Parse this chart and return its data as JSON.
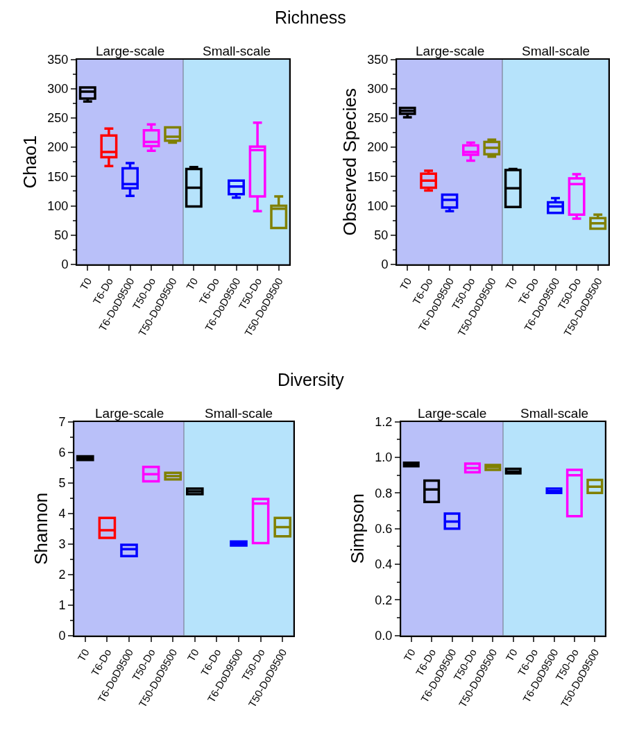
{
  "chart_data": [
    {
      "type": "box",
      "ylabel": "Chao1",
      "annotations": [
        "Richness"
      ],
      "categories": [
        "T0",
        "T6-Do",
        "T6-DoD9500",
        "T50-Do",
        "T50-DoD9500"
      ],
      "colors": [
        "#000000",
        "#ff0000",
        "#0000ff",
        "#ff00ff",
        "#808000"
      ],
      "boxes": [
        {
          "low": 278,
          "q1": 283,
          "median": 295,
          "q3": 302,
          "high": 302
        },
        {
          "low": 168,
          "q1": 183,
          "median": 192,
          "q3": 220,
          "high": 232
        },
        {
          "low": 117,
          "q1": 130,
          "median": 137,
          "q3": 164,
          "high": 173
        },
        {
          "low": 194,
          "q1": 202,
          "median": 209,
          "q3": 229,
          "high": 239
        },
        {
          "low": 208,
          "q1": 211,
          "median": 218,
          "q3": 234,
          "high": 234
        }
      ],
      "ylim": [
        0,
        350
      ],
      "yticks": [
        0,
        50,
        100,
        150,
        200,
        250,
        300,
        350
      ],
      "bands": [
        {
          "axis": "x",
          "from": "T0",
          "to": "T50-DoD9500",
          "label": "Large-scale",
          "color": "#b9c0f9"
        }
      ]
    },
    {
      "type": "box",
      "tick_labels": "x",
      "categories": [
        "T0",
        "T6-Do",
        "T6-DoD9500",
        "T50-Do",
        "T50-DoD9500"
      ],
      "colors": [
        "#000000",
        "#ff0000",
        "#0000ff",
        "#ff00ff",
        "#808000"
      ],
      "boxes": [
        {
          "low": 99,
          "q1": 99,
          "median": 131,
          "q3": 163,
          "high": 166
        },
        null,
        {
          "low": 114,
          "q1": 120,
          "median": 133,
          "q3": 143,
          "high": 143
        },
        {
          "low": 91,
          "q1": 116,
          "median": 195,
          "q3": 201,
          "high": 242
        },
        {
          "low": 62,
          "q1": 62,
          "median": 95,
          "q3": 100,
          "high": 116
        }
      ],
      "ylim": [
        0,
        350
      ],
      "bands": [
        {
          "axis": "x",
          "from": "T0",
          "to": "T50-DoD9500",
          "label": "Small-scale",
          "color": "#b6e3fb"
        }
      ]
    },
    {
      "type": "box",
      "ylabel": "Observed Species",
      "categories": [
        "T0",
        "T6-Do",
        "T6-DoD9500",
        "T50-Do",
        "T50-DoD9500"
      ],
      "colors": [
        "#000000",
        "#ff0000",
        "#0000ff",
        "#ff00ff",
        "#808000"
      ],
      "boxes": [
        {
          "low": 251,
          "q1": 257,
          "median": 262,
          "q3": 267,
          "high": 267
        },
        {
          "low": 126,
          "q1": 131,
          "median": 143,
          "q3": 155,
          "high": 160
        },
        {
          "low": 91,
          "q1": 97,
          "median": 110,
          "q3": 119,
          "high": 119
        },
        {
          "low": 177,
          "q1": 187,
          "median": 192,
          "q3": 203,
          "high": 208
        },
        {
          "low": 184,
          "q1": 188,
          "median": 199,
          "q3": 209,
          "high": 213
        }
      ],
      "ylim": [
        0,
        350
      ],
      "yticks": [
        0,
        50,
        100,
        150,
        200,
        250,
        300,
        350
      ],
      "bands": [
        {
          "axis": "x",
          "from": "T0",
          "to": "T50-DoD9500",
          "label": "Large-scale",
          "color": "#b9c0f9"
        }
      ]
    },
    {
      "type": "box",
      "tick_labels": "x",
      "categories": [
        "T0",
        "T6-Do",
        "T6-DoD9500",
        "T50-Do",
        "T50-DoD9500"
      ],
      "colors": [
        "#000000",
        "#ff0000",
        "#0000ff",
        "#ff00ff",
        "#808000"
      ],
      "boxes": [
        {
          "low": 98,
          "q1": 98,
          "median": 130,
          "q3": 161,
          "high": 163
        },
        null,
        {
          "low": 88,
          "q1": 88,
          "median": 99,
          "q3": 106,
          "high": 113
        },
        {
          "low": 78,
          "q1": 85,
          "median": 137,
          "q3": 147,
          "high": 154
        },
        {
          "low": 61,
          "q1": 61,
          "median": 70,
          "q3": 79,
          "high": 85
        }
      ],
      "ylim": [
        0,
        350
      ],
      "bands": [
        {
          "axis": "x",
          "from": "T0",
          "to": "T50-DoD9500",
          "label": "Small-scale",
          "color": "#b6e3fb"
        }
      ]
    },
    {
      "type": "box",
      "ylabel": "Shannon",
      "annotations": [
        "Diversity"
      ],
      "categories": [
        "T0",
        "T6-Do",
        "T6-DoD9500",
        "T50-Do",
        "T50-DoD9500"
      ],
      "colors": [
        "#000000",
        "#ff0000",
        "#0000ff",
        "#ff00ff",
        "#808000"
      ],
      "boxes": [
        {
          "low": 5.75,
          "q1": 5.75,
          "median": 5.82,
          "q3": 5.87,
          "high": 5.87
        },
        {
          "low": 3.2,
          "q1": 3.2,
          "median": 3.45,
          "q3": 3.85,
          "high": 3.85
        },
        {
          "low": 2.6,
          "q1": 2.6,
          "median": 2.83,
          "q3": 2.97,
          "high": 2.97
        },
        {
          "low": 5.05,
          "q1": 5.05,
          "median": 5.28,
          "q3": 5.52,
          "high": 5.52
        },
        {
          "low": 5.11,
          "q1": 5.11,
          "median": 5.22,
          "q3": 5.33,
          "high": 5.33
        }
      ],
      "ylim": [
        0,
        7
      ],
      "yticks": [
        0,
        1,
        2,
        3,
        4,
        5,
        6,
        7
      ],
      "bands": [
        {
          "axis": "x",
          "from": "T0",
          "to": "T50-DoD9500",
          "label": "Large-scale",
          "color": "#b9c0f9"
        }
      ]
    },
    {
      "type": "box",
      "tick_labels": "x",
      "categories": [
        "T0",
        "T6-Do",
        "T6-DoD9500",
        "T50-Do",
        "T50-DoD9500"
      ],
      "colors": [
        "#000000",
        "#ff0000",
        "#0000ff",
        "#ff00ff",
        "#808000"
      ],
      "boxes": [
        {
          "low": 4.63,
          "q1": 4.63,
          "median": 4.72,
          "q3": 4.81,
          "high": 4.81
        },
        null,
        {
          "low": 2.95,
          "q1": 2.95,
          "median": 3.02,
          "q3": 3.08,
          "high": 3.08
        },
        {
          "low": 3.03,
          "q1": 3.03,
          "median": 4.32,
          "q3": 4.47,
          "high": 4.47
        },
        {
          "low": 3.25,
          "q1": 3.25,
          "median": 3.55,
          "q3": 3.85,
          "high": 3.85
        }
      ],
      "ylim": [
        0,
        7
      ],
      "bands": [
        {
          "axis": "x",
          "from": "T0",
          "to": "T50-DoD9500",
          "label": "Small-scale",
          "color": "#b6e3fb"
        }
      ]
    },
    {
      "type": "box",
      "ylabel": "Simpson",
      "categories": [
        "T0",
        "T6-Do",
        "T6-DoD9500",
        "T50-Do",
        "T50-DoD9500"
      ],
      "colors": [
        "#000000",
        "#000000",
        "#0000ff",
        "#ff00ff",
        "#808000"
      ],
      "boxes": [
        {
          "low": 0.95,
          "q1": 0.95,
          "median": 0.96,
          "q3": 0.97,
          "high": 0.97
        },
        {
          "low": 0.75,
          "q1": 0.75,
          "median": 0.82,
          "q3": 0.87,
          "high": 0.87
        },
        {
          "low": 0.6,
          "q1": 0.6,
          "median": 0.64,
          "q3": 0.685,
          "high": 0.685
        },
        {
          "low": 0.916,
          "q1": 0.916,
          "median": 0.94,
          "q3": 0.965,
          "high": 0.965
        },
        {
          "low": 0.93,
          "q1": 0.93,
          "median": 0.945,
          "q3": 0.957,
          "high": 0.957
        }
      ],
      "ylim": [
        0,
        1.2
      ],
      "yticks": [
        {
          "value": 0,
          "label": "0.0"
        },
        0.2,
        0.4,
        0.6,
        0.8,
        {
          "value": 1,
          "label": "1.0"
        },
        1.2
      ],
      "bands": [
        {
          "axis": "x",
          "from": "T0",
          "to": "T50-DoD9500",
          "label": "Large-scale",
          "color": "#b9c0f9"
        }
      ]
    },
    {
      "type": "box",
      "tick_labels": "x",
      "categories": [
        "T0",
        "T6-Do",
        "T6-DoD9500",
        "T50-Do",
        "T50-DoD9500"
      ],
      "colors": [
        "#000000",
        "#ff0000",
        "#0000ff",
        "#ff00ff",
        "#808000"
      ],
      "boxes": [
        {
          "low": 0.91,
          "q1": 0.91,
          "median": 0.92,
          "q3": 0.936,
          "high": 0.936
        },
        null,
        {
          "low": 0.8,
          "q1": 0.8,
          "median": 0.81,
          "q3": 0.825,
          "high": 0.825
        },
        {
          "low": 0.67,
          "q1": 0.67,
          "median": 0.9,
          "q3": 0.93,
          "high": 0.93
        },
        {
          "low": 0.8,
          "q1": 0.8,
          "median": 0.835,
          "q3": 0.873,
          "high": 0.873
        }
      ],
      "ylim": [
        0,
        1.2
      ],
      "bands": [
        {
          "axis": "x",
          "from": "T0",
          "to": "T50-DoD9500",
          "label": "Small-scale",
          "color": "#b6e3fb"
        }
      ]
    }
  ]
}
